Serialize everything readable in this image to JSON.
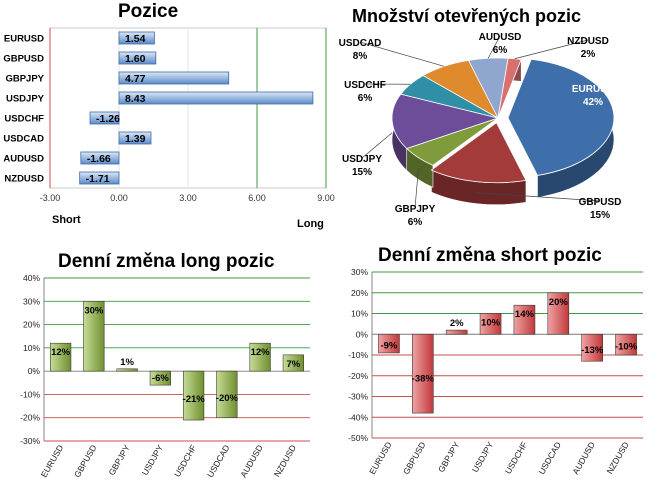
{
  "colors": {
    "pos_bar": "#5b8bc9",
    "daily_long": "#6f8f2e",
    "daily_short": "#c0393b",
    "green_line": "#3d9b3d",
    "red_line": "#c84c4c",
    "pie_colors": [
      "#3f6faa",
      "#a33b3b",
      "#7f9b3b",
      "#6d4d9a",
      "#2f8fa5",
      "#e08a2e",
      "#8fa7cf",
      "#d97070"
    ]
  },
  "chart_data": [
    {
      "type": "bar",
      "orientation": "horizontal",
      "title": "Pozice",
      "categories": [
        "EURUSD",
        "GBPUSD",
        "GBPJPY",
        "USDJPY",
        "USDCHF",
        "USDCAD",
        "AUDUSD",
        "NZDUSD"
      ],
      "values": [
        1.54,
        1.6,
        4.77,
        8.43,
        -1.26,
        1.39,
        -1.66,
        -1.71
      ],
      "value_labels": [
        "1.54",
        "1.60",
        "4.77",
        "8.43",
        "-1.26",
        "1.39",
        "-1.66",
        "-1.71"
      ],
      "xlim": [
        -3.0,
        9.0
      ],
      "xticks": [
        -3.0,
        0.0,
        3.0,
        6.0,
        9.0
      ],
      "xtick_labels": [
        "-3.00",
        "0.00",
        "3.00",
        "6.00",
        "9.00"
      ],
      "left_label": "Short",
      "right_label": "Long"
    },
    {
      "type": "pie",
      "title": "Množství otevřených pozic",
      "slices": [
        {
          "name": "EURUSD",
          "value": 42,
          "label": "42%"
        },
        {
          "name": "GBPUSD",
          "value": 15,
          "label": "15%"
        },
        {
          "name": "GBPJPY",
          "value": 6,
          "label": "6%"
        },
        {
          "name": "USDJPY",
          "value": 15,
          "label": "15%"
        },
        {
          "name": "USDCHF",
          "value": 6,
          "label": "6%"
        },
        {
          "name": "USDCAD",
          "value": 8,
          "label": "8%"
        },
        {
          "name": "AUDUSD",
          "value": 6,
          "label": "6%"
        },
        {
          "name": "NZDUSD",
          "value": 2,
          "label": "2%"
        }
      ]
    },
    {
      "type": "bar",
      "title": "Denní změna long pozic",
      "categories": [
        "EURUSD",
        "GBPUSD",
        "GBPJPY",
        "USDJPY",
        "USDCHF",
        "USDCAD",
        "AUDUSD",
        "NZDUSD"
      ],
      "values": [
        12,
        30,
        1,
        -6,
        -21,
        -20,
        12,
        7
      ],
      "value_labels": [
        "12%",
        "30%",
        "1%",
        "-6%",
        "-21%",
        "-20%",
        "12%",
        "7%"
      ],
      "ylim": [
        -30,
        40
      ],
      "yticks": [
        -30,
        -20,
        -10,
        0,
        10,
        20,
        30,
        40
      ],
      "ytick_labels": [
        "-30%",
        "-20%",
        "-10%",
        "0%",
        "10%",
        "20%",
        "30%",
        "40%"
      ]
    },
    {
      "type": "bar",
      "title": "Denní změna short pozic",
      "categories": [
        "EURUSD",
        "GBPUSD",
        "GBPJPY",
        "USDJPY",
        "USDCHF",
        "USDCAD",
        "AUDUSD",
        "NZDUSD"
      ],
      "values": [
        -9,
        -38,
        2,
        10,
        14,
        20,
        -13,
        -10
      ],
      "value_labels": [
        "-9%",
        "-38%",
        "2%",
        "10%",
        "14%",
        "20%",
        "-13%",
        "-10%"
      ],
      "ylim": [
        -50,
        30
      ],
      "yticks": [
        -50,
        -40,
        -30,
        -20,
        -10,
        0,
        10,
        20,
        30
      ],
      "ytick_labels": [
        "-50%",
        "-40%",
        "-30%",
        "-20%",
        "-10%",
        "0%",
        "10%",
        "20%",
        "30%"
      ]
    }
  ]
}
